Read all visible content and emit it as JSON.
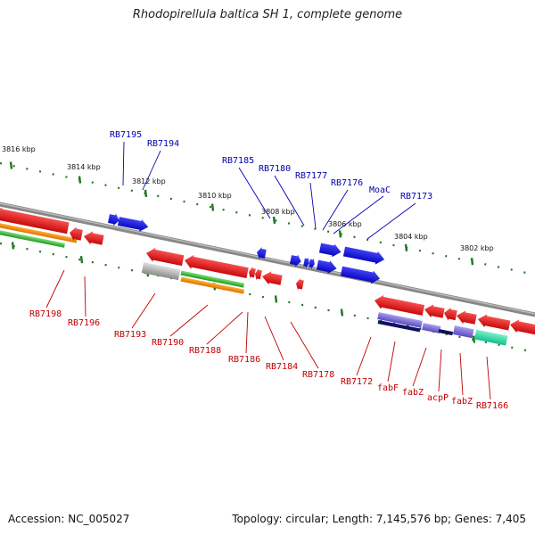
{
  "title": "Rhodopirellula baltica SH 1, complete genome",
  "footer": {
    "accession": "Accession: NC_005027",
    "topology": "Topology: circular; Length: 7,145,576 bp; Genes: 7,405"
  },
  "scale": {
    "ticks": [
      "3816 kbp",
      "3814 kbp",
      "3812 kbp",
      "3810 kbp",
      "3808 kbp",
      "3806 kbp",
      "3804 kbp",
      "3802 kbp"
    ]
  },
  "colors": {
    "forward_gene": "#1010e0",
    "reverse_gene": "#e01010",
    "backbone": "#888888",
    "scale_dots": "#1f7a1f",
    "label_forward": "#0000b0",
    "label_reverse": "#c00000"
  },
  "labels": {
    "forward": [
      "RB7195",
      "RB7194",
      "RB7185",
      "RB7180",
      "RB7177",
      "RB7176",
      "MoaC",
      "RB7173"
    ],
    "reverse": [
      "RB7198",
      "RB7196",
      "RB7193",
      "RB7190",
      "RB7188",
      "RB7186",
      "RB7184",
      "RB7178",
      "RB7172",
      "fabF",
      "fabZ",
      "acpP",
      "fabZ",
      "RB7166"
    ]
  }
}
